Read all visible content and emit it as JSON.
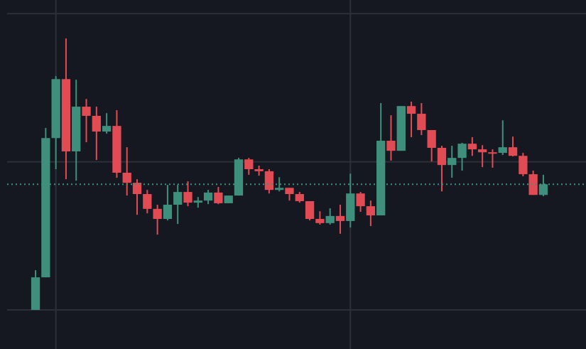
{
  "chart_data": {
    "type": "candlestick",
    "x": [
      0,
      1,
      2,
      3,
      4,
      5,
      6,
      7,
      8,
      9,
      10,
      11,
      12,
      13,
      14,
      15,
      16,
      17,
      18,
      19,
      20,
      21,
      22,
      23,
      24,
      25,
      26,
      27,
      28,
      29,
      30,
      31,
      32,
      33,
      34,
      35,
      36,
      37,
      38,
      39,
      40,
      41,
      42,
      43,
      44,
      45,
      46,
      47,
      48,
      49,
      50
    ],
    "open": [
      0,
      11.0,
      58.0,
      77.9,
      53.5,
      68.6,
      65.5,
      60.2,
      62.1,
      46.3,
      42.9,
      39.1,
      34.1,
      30.7,
      35.5,
      39.8,
      36.2,
      36.9,
      39.6,
      36.0,
      38.6,
      50.8,
      47.5,
      46.8,
      40.5,
      41.2,
      39.1,
      36.7,
      30.7,
      29.3,
      31.7,
      30.0,
      39.3,
      35.0,
      31.9,
      57.1,
      53.7,
      68.8,
      66.2,
      60.7,
      54.7,
      48.9,
      51.3,
      56.1,
      54.2,
      53.2,
      53.0,
      54.9,
      52.0,
      45.8,
      38.8
    ],
    "high": [
      13.4,
      61.4,
      78.9,
      91.6,
      77.7,
      71.2,
      68.6,
      66.4,
      67.4,
      54.9,
      44.1,
      40.5,
      35.5,
      42.2,
      42.2,
      43.4,
      38.1,
      40.5,
      41.5,
      38.6,
      51.3,
      51.3,
      48.7,
      47.5,
      44.8,
      41.2,
      39.8,
      36.7,
      33.3,
      34.3,
      35.5,
      46.0,
      39.8,
      36.9,
      69.8,
      65.7,
      68.8,
      70.3,
      69.8,
      60.7,
      55.4,
      55.4,
      56.4,
      58.3,
      55.6,
      54.2,
      64.0,
      58.5,
      53.0,
      47.0,
      45.6
    ],
    "low": [
      0,
      11.0,
      47.5,
      44.1,
      43.6,
      56.6,
      50.6,
      59.5,
      44.6,
      38.6,
      32.1,
      32.6,
      25.4,
      30.2,
      29.0,
      35.0,
      34.5,
      35.7,
      35.7,
      36.0,
      38.6,
      45.6,
      45.3,
      39.3,
      40.0,
      36.9,
      36.2,
      30.2,
      28.8,
      28.8,
      25.7,
      27.8,
      33.1,
      28.3,
      31.9,
      50.4,
      53.7,
      58.3,
      59.0,
      50.1,
      40.0,
      44.6,
      47.0,
      52.0,
      48.2,
      48.0,
      52.3,
      51.8,
      45.1,
      38.8,
      38.4
    ],
    "close": [
      11.0,
      58.0,
      77.9,
      53.5,
      68.6,
      65.5,
      60.2,
      62.1,
      46.3,
      42.9,
      39.1,
      34.1,
      30.7,
      35.5,
      39.8,
      36.2,
      36.9,
      39.6,
      36.0,
      38.6,
      50.8,
      47.5,
      46.8,
      40.5,
      41.2,
      39.1,
      36.7,
      30.7,
      29.3,
      31.7,
      30.0,
      39.3,
      35.0,
      31.9,
      57.1,
      53.7,
      68.8,
      66.2,
      60.7,
      54.7,
      48.9,
      51.3,
      56.1,
      54.2,
      53.2,
      53.0,
      54.9,
      52.0,
      45.8,
      38.8,
      42.4
    ],
    "up_color": "#3f8f7d",
    "down_color": "#e04b54",
    "ylim": [
      -13.2,
      104.6
    ],
    "yticks": [
      0,
      50,
      100
    ],
    "xlim": [
      -3.5,
      54.2
    ],
    "xticks": [
      2,
      31
    ],
    "grid": true,
    "price_line": true
  }
}
